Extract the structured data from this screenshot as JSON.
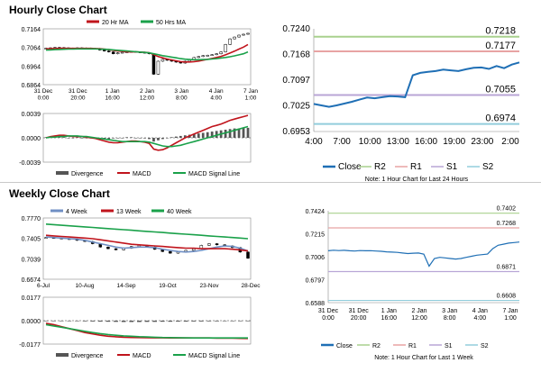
{
  "hourly_title": "Hourly Close Chart",
  "weekly_title": "Weekly Close Chart",
  "colors": {
    "close": "#1f5fa8",
    "candle": "#000000",
    "ma20": "#c0141c",
    "ma50": "#1aa14a",
    "wk4": "#6f8fc4",
    "wk13": "#c0141c",
    "wk40": "#1aa14a",
    "macd_div": "#555555",
    "macd": "#c0141c",
    "macd_signal": "#1aa14a",
    "r2": "#a9d18e",
    "r1": "#e8a3a3",
    "s1": "#b9a6d6",
    "s2": "#92cddc",
    "close_line": "#1f6fb5"
  },
  "chart_data": [
    {
      "id": "hourly-price",
      "type": "line",
      "title": "Hourly Close Chart",
      "legend": [
        "20 Hr MA",
        "50 Hrs MA"
      ],
      "ylim": [
        0.6864,
        0.7164
      ],
      "y_ticks": [
        "0.7164",
        "0.7064",
        "0.6964",
        "0.6864"
      ],
      "x_ticks": [
        "31 Dec\n0:00",
        "31 Dec\n20:00",
        "1 Jan\n16:00",
        "2 Jan\n12:00",
        "3 Jan\n8:00",
        "4 Jan\n4:00",
        "7 Jan\n1:00"
      ],
      "series": [
        {
          "name": "Close",
          "values": [
            0.706,
            0.7062,
            0.7064,
            0.7063,
            0.7062,
            0.706,
            0.7058,
            0.7062,
            0.7061,
            0.706,
            0.7059,
            0.7058,
            0.705,
            0.7045,
            0.704,
            0.703,
            0.7035,
            0.7038,
            0.704,
            0.7042,
            0.704,
            0.7038,
            0.7035,
            0.703,
            0.692,
            0.699,
            0.7,
            0.6995,
            0.699,
            0.6985,
            0.698,
            0.699,
            0.7,
            0.701,
            0.7015,
            0.702,
            0.7022,
            0.7025,
            0.703,
            0.704,
            0.708,
            0.711,
            0.712,
            0.713,
            0.7135,
            0.714
          ]
        },
        {
          "name": "20 Hr MA",
          "values": [
            0.7056,
            0.7057,
            0.7058,
            0.7059,
            0.7059,
            0.7059,
            0.7059,
            0.7059,
            0.7059,
            0.7059,
            0.7059,
            0.7058,
            0.7057,
            0.7055,
            0.7052,
            0.7048,
            0.7045,
            0.7043,
            0.7041,
            0.704,
            0.704,
            0.7039,
            0.7038,
            0.7036,
            0.7025,
            0.7015,
            0.7008,
            0.7002,
            0.6997,
            0.6992,
            0.6988,
            0.6986,
            0.6986,
            0.6988,
            0.6991,
            0.6995,
            0.7,
            0.7005,
            0.701,
            0.7016,
            0.7024,
            0.7034,
            0.7044,
            0.7055,
            0.7066,
            0.708
          ]
        },
        {
          "name": "50 Hrs MA",
          "values": [
            0.705,
            0.7051,
            0.7052,
            0.7053,
            0.7054,
            0.7055,
            0.7055,
            0.7056,
            0.7056,
            0.7056,
            0.7056,
            0.7056,
            0.7055,
            0.7054,
            0.7053,
            0.7051,
            0.7049,
            0.7047,
            0.7045,
            0.7043,
            0.7041,
            0.7039,
            0.7037,
            0.7035,
            0.703,
            0.7025,
            0.702,
            0.7016,
            0.7012,
            0.7008,
            0.7004,
            0.7001,
            0.6999,
            0.6998,
            0.6998,
            0.6999,
            0.7,
            0.7002,
            0.7004,
            0.7007,
            0.701,
            0.7014,
            0.7019,
            0.7024,
            0.703,
            0.704
          ]
        }
      ]
    },
    {
      "id": "hourly-macd",
      "type": "bar",
      "legend": [
        "Divergence",
        "MACD",
        "MACD Signal Line"
      ],
      "ylim": [
        -0.0039,
        0.0039
      ],
      "y_ticks": [
        "0.0039",
        "0.0000",
        "-0.0039"
      ],
      "series": [
        {
          "name": "Divergence",
          "values": [
            0.0001,
            0.0002,
            0.0002,
            0.0001,
            0.0001,
            0.0,
            0.0,
            0.0001,
            0.0,
            0.0,
            -0.0001,
            -0.0001,
            -0.0002,
            -0.0002,
            -0.0002,
            -0.0001,
            0.0,
            0.0,
            0.0001,
            0.0001,
            0.0,
            0.0,
            -0.0001,
            -0.0002,
            -0.0006,
            -0.0004,
            -0.0002,
            0.0,
            0.0001,
            0.0002,
            0.0003,
            0.0004,
            0.0005,
            0.0006,
            0.0007,
            0.0008,
            0.0009,
            0.001,
            0.0011,
            0.0012,
            0.0013,
            0.0014,
            0.0015,
            0.0015,
            0.0016,
            0.0016
          ]
        },
        {
          "name": "MACD",
          "values": [
            0.0,
            0.0002,
            0.0003,
            0.0004,
            0.0004,
            0.0003,
            0.0002,
            0.0002,
            0.0002,
            0.0001,
            0.0,
            -0.0001,
            -0.0003,
            -0.0005,
            -0.0007,
            -0.0008,
            -0.0008,
            -0.0007,
            -0.0006,
            -0.0005,
            -0.0005,
            -0.0006,
            -0.0007,
            -0.0009,
            -0.0018,
            -0.002,
            -0.0019,
            -0.0016,
            -0.0012,
            -0.0008,
            -0.0004,
            0.0,
            0.0003,
            0.0006,
            0.0009,
            0.0012,
            0.0015,
            0.0018,
            0.002,
            0.0022,
            0.0025,
            0.0028,
            0.003,
            0.0032,
            0.0034,
            0.0036
          ]
        },
        {
          "name": "MACD Signal Line",
          "values": [
            0.0,
            0.0001,
            0.0001,
            0.0002,
            0.0002,
            0.0003,
            0.0003,
            0.0003,
            0.0002,
            0.0002,
            0.0001,
            0.0,
            -0.0001,
            -0.0002,
            -0.0003,
            -0.0004,
            -0.0005,
            -0.0006,
            -0.0006,
            -0.0006,
            -0.0006,
            -0.0006,
            -0.0006,
            -0.0007,
            -0.0009,
            -0.0011,
            -0.0013,
            -0.0014,
            -0.0014,
            -0.0013,
            -0.0012,
            -0.001,
            -0.0008,
            -0.0006,
            -0.0004,
            -0.0002,
            0.0,
            0.0002,
            0.0004,
            0.0006,
            0.0008,
            0.001,
            0.0012,
            0.0014,
            0.0016,
            0.0018
          ]
        }
      ]
    },
    {
      "id": "hourly-levels",
      "type": "line",
      "ylim": [
        0.6953,
        0.724
      ],
      "y_ticks": [
        "0.7240",
        "0.7168",
        "0.7097",
        "0.7025",
        "0.6953"
      ],
      "x_ticks": [
        "4:00",
        "7:00",
        "10:00",
        "13:00",
        "16:00",
        "19:00",
        "23:00",
        "2:00"
      ],
      "levels": [
        {
          "name": "R2",
          "value": 0.7218,
          "label": "0.7218"
        },
        {
          "name": "R1",
          "value": 0.7177,
          "label": "0.7177"
        },
        {
          "name": "S1",
          "value": 0.7055,
          "label": "0.7055"
        },
        {
          "name": "S2",
          "value": 0.6974,
          "label": "0.6974"
        }
      ],
      "close": [
        0.703,
        0.7026,
        0.7022,
        0.7026,
        0.7031,
        0.7036,
        0.7042,
        0.7048,
        0.7046,
        0.7049,
        0.7052,
        0.7051,
        0.7049,
        0.711,
        0.7117,
        0.712,
        0.7122,
        0.7126,
        0.7124,
        0.7122,
        0.7127,
        0.7131,
        0.7132,
        0.7128,
        0.7136,
        0.713,
        0.714,
        0.7146
      ],
      "legend": [
        "Close",
        "R2",
        "R1",
        "S1",
        "S2"
      ],
      "note": "Note: 1 Hour Chart for Last 24 Hours"
    },
    {
      "id": "weekly-price",
      "type": "line",
      "title": "Weekly Close Chart",
      "legend": [
        "4 Week",
        "13 Week",
        "40 Week"
      ],
      "ylim": [
        0.6674,
        0.777
      ],
      "y_ticks": [
        "0.7770",
        "0.7405",
        "0.7039",
        "0.6674"
      ],
      "x_ticks": [
        "6-Jul",
        "10-Aug",
        "14-Sep",
        "19-Oct",
        "23-Nov",
        "28-Dec"
      ],
      "series": [
        {
          "name": "Close",
          "values": [
            0.742,
            0.741,
            0.74,
            0.739,
            0.737,
            0.735,
            0.731,
            0.725,
            0.722,
            0.72,
            0.723,
            0.726,
            0.728,
            0.725,
            0.721,
            0.717,
            0.714,
            0.716,
            0.719,
            0.722,
            0.728,
            0.731,
            0.729,
            0.727,
            0.724,
            0.716,
            0.705
          ]
        },
        {
          "name": "4 Week",
          "values": [
            0.743,
            0.742,
            0.741,
            0.74,
            0.739,
            0.737,
            0.734,
            0.731,
            0.728,
            0.725,
            0.723,
            0.724,
            0.725,
            0.725,
            0.724,
            0.721,
            0.719,
            0.717,
            0.716,
            0.717,
            0.719,
            0.722,
            0.725,
            0.727,
            0.726,
            0.723,
            0.718
          ]
        },
        {
          "name": "13 Week",
          "values": [
            0.746,
            0.745,
            0.744,
            0.743,
            0.742,
            0.741,
            0.74,
            0.738,
            0.736,
            0.734,
            0.732,
            0.73,
            0.729,
            0.728,
            0.727,
            0.726,
            0.725,
            0.724,
            0.723,
            0.723,
            0.722,
            0.722,
            0.722,
            0.722,
            0.721,
            0.72,
            0.718
          ]
        },
        {
          "name": "40 Week",
          "values": [
            0.766,
            0.765,
            0.764,
            0.763,
            0.762,
            0.761,
            0.76,
            0.759,
            0.758,
            0.757,
            0.756,
            0.755,
            0.754,
            0.753,
            0.752,
            0.751,
            0.75,
            0.749,
            0.748,
            0.747,
            0.746,
            0.745,
            0.744,
            0.743,
            0.742,
            0.741,
            0.74
          ]
        }
      ]
    },
    {
      "id": "weekly-macd",
      "type": "bar",
      "legend": [
        "Divergence",
        "MACD",
        "MACD Signal Line"
      ],
      "ylim": [
        -0.0177,
        0.0177
      ],
      "y_ticks": [
        "0.0177",
        "0.0000",
        "-0.0177"
      ],
      "series": [
        {
          "name": "Divergence",
          "values": [
            0.0,
            -0.0001,
            -0.0002,
            -0.0003,
            -0.0004,
            -0.0005,
            -0.0006,
            -0.0007,
            -0.0008,
            -0.0009,
            -0.001,
            -0.001,
            -0.001,
            -0.0009,
            -0.0009,
            -0.0008,
            -0.0008,
            -0.0007,
            -0.0007,
            -0.0006,
            -0.0006,
            -0.0005,
            -0.0005,
            -0.0004,
            -0.0004,
            -0.0003,
            -0.0003
          ]
        },
        {
          "name": "MACD",
          "values": [
            -0.002,
            -0.003,
            -0.0045,
            -0.006,
            -0.0075,
            -0.009,
            -0.01,
            -0.011,
            -0.0118,
            -0.0122,
            -0.0125,
            -0.0127,
            -0.0128,
            -0.0129,
            -0.013,
            -0.013,
            -0.0131,
            -0.0131,
            -0.0131,
            -0.0131,
            -0.0131,
            -0.0131,
            -0.0132,
            -0.0132,
            -0.0133,
            -0.0134,
            -0.0135
          ]
        },
        {
          "name": "MACD Signal Line",
          "values": [
            -0.003,
            -0.004,
            -0.005,
            -0.006,
            -0.007,
            -0.008,
            -0.009,
            -0.0098,
            -0.0105,
            -0.011,
            -0.0115,
            -0.0118,
            -0.0121,
            -0.0123,
            -0.0125,
            -0.0127,
            -0.0128,
            -0.0129,
            -0.013,
            -0.0131,
            -0.0131,
            -0.0131,
            -0.0131,
            -0.0131,
            -0.0131,
            -0.0131,
            -0.0131
          ]
        }
      ]
    },
    {
      "id": "weekly-levels",
      "type": "line",
      "ylim": [
        0.6588,
        0.7424
      ],
      "y_ticks": [
        "0.7424",
        "0.7215",
        "0.7006",
        "0.6797",
        "0.6588"
      ],
      "x_ticks": [
        "31 Dec\n0:00",
        "31 Dec\n20:00",
        "1 Jan\n16:00",
        "2 Jan\n12:00",
        "3 Jan\n8:00",
        "4 Jan\n4:00",
        "7 Jan\n1:00"
      ],
      "levels": [
        {
          "name": "R2",
          "value": 0.7402,
          "label": "0.7402"
        },
        {
          "name": "R1",
          "value": 0.7268,
          "label": "0.7268"
        },
        {
          "name": "S1",
          "value": 0.6871,
          "label": "0.6871"
        },
        {
          "name": "S2",
          "value": 0.6608,
          "label": "0.6608"
        }
      ],
      "close": [
        0.706,
        0.7065,
        0.7062,
        0.7064,
        0.706,
        0.7058,
        0.7062,
        0.706,
        0.7061,
        0.7058,
        0.7055,
        0.705,
        0.7048,
        0.7045,
        0.704,
        0.7035,
        0.7038,
        0.704,
        0.703,
        0.692,
        0.699,
        0.7,
        0.6995,
        0.699,
        0.6985,
        0.699,
        0.7,
        0.701,
        0.702,
        0.7025,
        0.703,
        0.708,
        0.711,
        0.712,
        0.713,
        0.7135,
        0.714
      ],
      "legend": [
        "Close",
        "R2",
        "R1",
        "S1",
        "S2"
      ],
      "note": "Note: 1 Hour Chart for Last 1 Week"
    }
  ]
}
